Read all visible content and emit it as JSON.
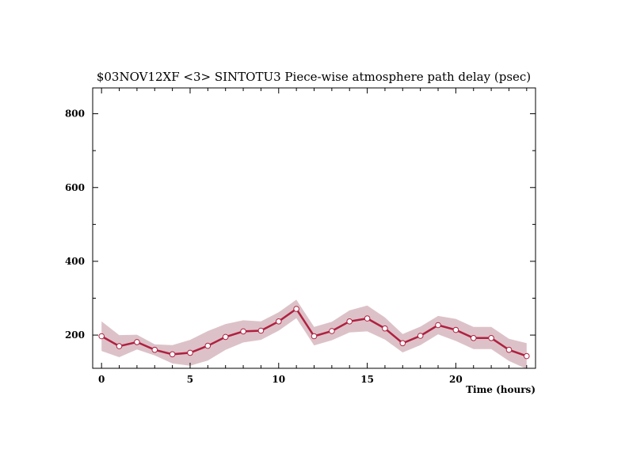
{
  "chart_data": {
    "type": "line",
    "title": "$03NOV12XF <3>  SINTOTU3  Piece-wise atmosphere path delay (psec)",
    "xlabel": "Time (hours)",
    "ylabel": "",
    "xlim": [
      -0.5,
      24.5
    ],
    "ylim": [
      110,
      870
    ],
    "x_ticks": [
      0,
      5,
      10,
      15,
      20
    ],
    "y_ticks": [
      200,
      400,
      600,
      800
    ],
    "grid": false,
    "series": [
      {
        "x": [
          0,
          1,
          2,
          3,
          4,
          5,
          6,
          7,
          8,
          9,
          10,
          11,
          12,
          13,
          14,
          15,
          16,
          17,
          18,
          19,
          20,
          21,
          22,
          23,
          24
        ],
        "values": [
          197,
          170,
          181,
          160,
          148,
          152,
          171,
          195,
          210,
          212,
          237,
          271,
          197,
          211,
          237,
          245,
          218,
          178,
          198,
          227,
          214,
          192,
          192,
          160,
          143
        ],
        "band_half_width": [
          40,
          30,
          20,
          15,
          25,
          35,
          40,
          35,
          30,
          25,
          25,
          25,
          25,
          25,
          30,
          35,
          30,
          25,
          25,
          25,
          30,
          30,
          30,
          30,
          35
        ]
      }
    ],
    "colors": {
      "line": "#b02040",
      "band": "#dcc2c8",
      "marker_fill": "#ffffff"
    }
  }
}
